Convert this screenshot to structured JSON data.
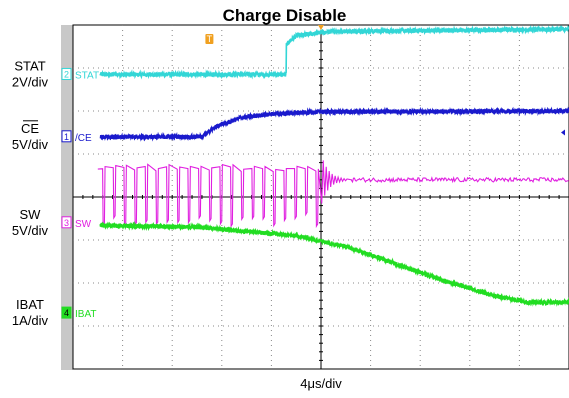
{
  "title": "Charge Disable",
  "timebase": "4μs/div",
  "chart_data": {
    "type": "line",
    "title": "Charge Disable",
    "xlabel": "4μs/div",
    "x_divisions": 10,
    "y_divisions": 8,
    "grid": true,
    "trigger_marker": "T",
    "colors": {
      "ch1": "#1a1acc",
      "ch2": "#33d6d6",
      "ch3": "#e020e0",
      "ch4": "#22dd22",
      "trigger": "#f0a020"
    },
    "series": [
      {
        "name": "STAT",
        "channel": "2",
        "scale": "2V/div",
        "trace_label": "STAT",
        "x_div": [
          0,
          4.3,
          4.3,
          4.5,
          5.2,
          10
        ],
        "y_div": [
          6.85,
          6.85,
          7.55,
          7.75,
          7.85,
          7.9
        ],
        "noise_div": 0.05
      },
      {
        "name": "CE",
        "channel": "1",
        "scale": "5V/div",
        "trace_label": "/CE",
        "x_div": [
          0,
          2.6,
          2.9,
          3.4,
          4.0,
          5.0,
          10
        ],
        "y_div": [
          5.4,
          5.4,
          5.65,
          5.85,
          5.93,
          5.98,
          6.0
        ],
        "noise_div": 0.05
      },
      {
        "name": "SW",
        "channel": "3",
        "scale": "5V/div",
        "trace_label": "SW",
        "high_div": 4.65,
        "low_div": 3.35,
        "switch_start_div": 0.5,
        "switch_end_div": 5.1,
        "switch_period_div": 0.215,
        "settled_div": 4.4,
        "noise_div": 0.05
      },
      {
        "name": "IBAT",
        "channel": "4",
        "scale": "1A/div",
        "trace_label": "IBAT",
        "x_div": [
          0,
          2.5,
          4.5,
          5.5,
          6.5,
          7.5,
          8.5,
          9.2,
          10
        ],
        "y_div": [
          3.35,
          3.3,
          3.1,
          2.85,
          2.45,
          2.05,
          1.7,
          1.55,
          1.55
        ],
        "noise_div": 0.05
      }
    ]
  }
}
